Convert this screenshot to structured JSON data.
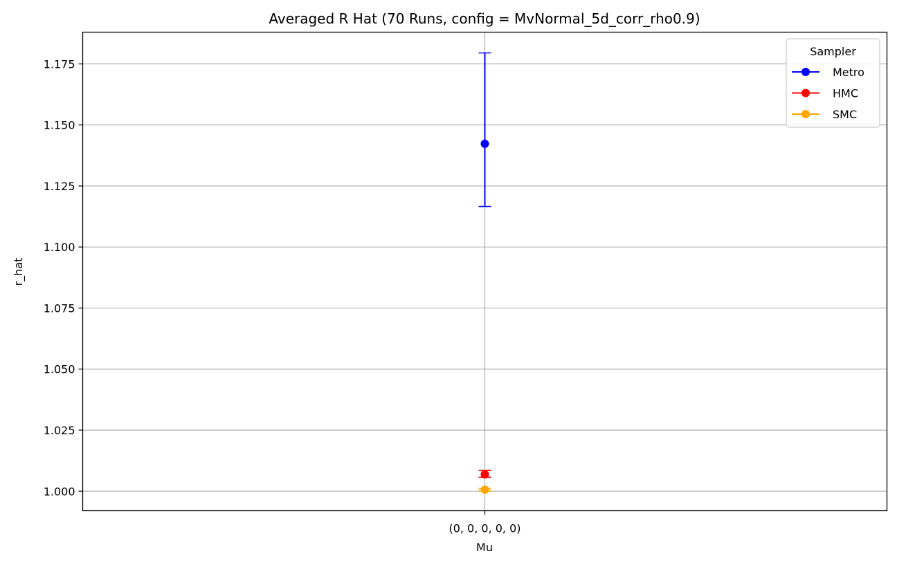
{
  "chart_data": {
    "type": "scatter",
    "title": "Averaged R Hat (70 Runs, config = MvNormal_5d_corr_rho0.9)",
    "xlabel": "Mu",
    "ylabel": "r_hat",
    "categories": [
      "(0, 0, 0, 0, 0)"
    ],
    "ylim": [
      0.992,
      1.188
    ],
    "yticks": [
      1.0,
      1.025,
      1.05,
      1.075,
      1.1,
      1.125,
      1.15,
      1.175
    ],
    "ytick_labels": [
      "1.000",
      "1.025",
      "1.050",
      "1.075",
      "1.100",
      "1.125",
      "1.150",
      "1.175"
    ],
    "grid": true,
    "legend": {
      "title": "Sampler",
      "placement": "top-right"
    },
    "series": [
      {
        "name": "Metro",
        "color": "#0000ff",
        "values": [
          1.1423
        ],
        "err_low": [
          1.1166
        ],
        "err_high": [
          1.1795
        ]
      },
      {
        "name": "HMC",
        "color": "#ff0000",
        "values": [
          1.0069
        ],
        "err_low": [
          1.0057
        ],
        "err_high": [
          1.0085
        ]
      },
      {
        "name": "SMC",
        "color": "#ffa500",
        "values": [
          1.0006
        ],
        "err_low": [
          1.0001
        ],
        "err_high": [
          1.0011
        ]
      }
    ]
  }
}
